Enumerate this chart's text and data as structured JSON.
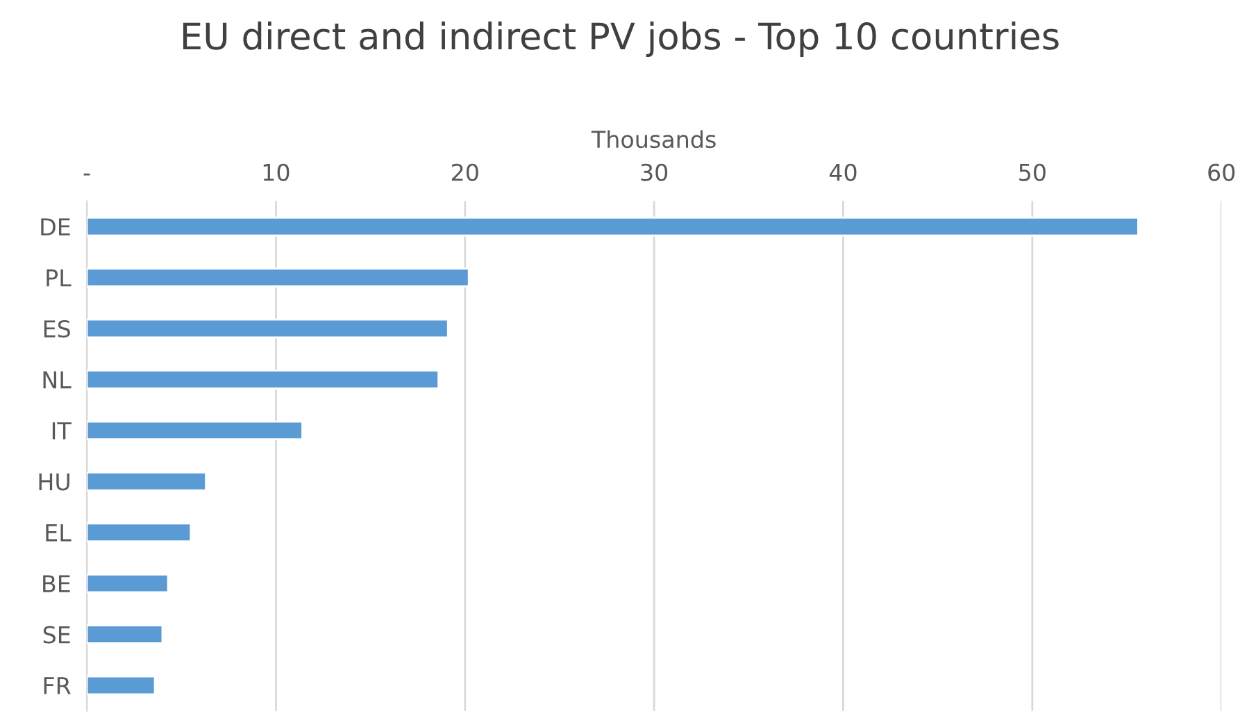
{
  "chart_data": {
    "type": "bar",
    "orientation": "horizontal",
    "title": "EU direct and indirect PV jobs - Top 10 countries",
    "xlabel": "Thousands",
    "categories": [
      "DE",
      "PL",
      "ES",
      "NL",
      "IT",
      "HU",
      "EL",
      "BE",
      "SE",
      "FR"
    ],
    "series": [
      {
        "color": "#5b9bd5",
        "values": [
          55.6,
          20.2,
          19.1,
          18.6,
          11.4,
          6.3,
          5.5,
          4.3,
          4.0,
          3.6
        ]
      }
    ],
    "xlim": [
      0,
      60
    ],
    "xticks": [
      {
        "value": 0,
        "label": "-"
      },
      10,
      20,
      30,
      40,
      50,
      60
    ],
    "grid": "x"
  }
}
